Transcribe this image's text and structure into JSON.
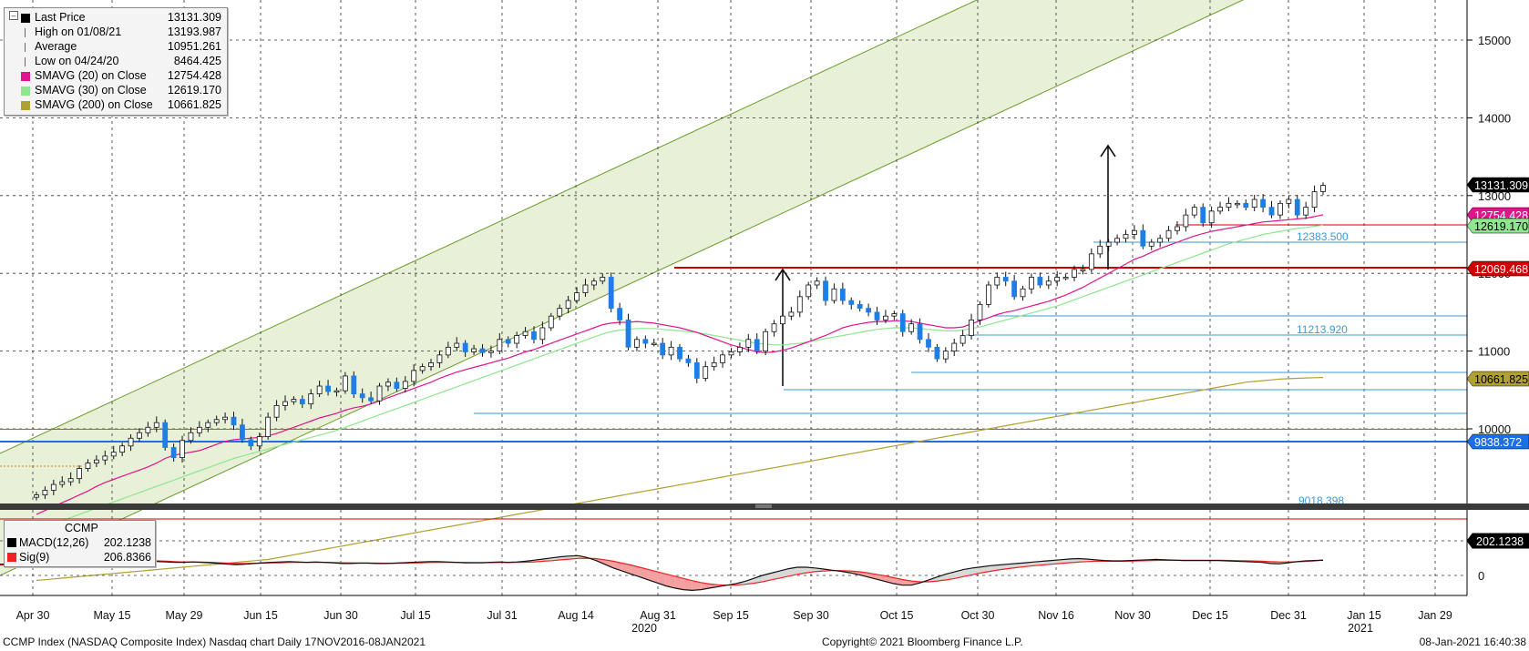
{
  "chart_data": {
    "type": "candlestick",
    "instrument": "CCMP Index (NASDAQ Composite Index) Nasdaq chart  Daily  17NOV2016-08JAN2021",
    "x_axis": {
      "ticks": [
        "Apr 30",
        "May 15",
        "May 29",
        "Jun 15",
        "Jun 30",
        "Jul 15",
        "Jul 31",
        "Aug 14",
        "Aug 31",
        "Sep 15",
        "Sep 30",
        "Oct 15",
        "Oct 30",
        "Nov 16",
        "Nov 30",
        "Dec 15",
        "Dec 31",
        "Jan 15",
        "Jan 29"
      ],
      "year_labels": [
        "2020",
        "2021"
      ]
    },
    "y_axis": {
      "ticks": [
        "15000",
        "14000",
        "13000",
        "12000",
        "11000",
        "10000"
      ],
      "ylim": [
        9000,
        15500
      ]
    },
    "legend": [
      {
        "name": "Last Price",
        "value": "13131.309",
        "color": "#000000"
      },
      {
        "name": "High on 01/08/21",
        "value": "13193.987",
        "color": "#666666"
      },
      {
        "name": "Average",
        "value": "10951.261",
        "color": "#666666"
      },
      {
        "name": "Low on 04/24/20",
        "value": "8464.425",
        "color": "#666666"
      },
      {
        "name": "SMAVG (20)  on Close",
        "value": "12754.428",
        "color": "#e0148c"
      },
      {
        "name": "SMAVG (30)  on Close",
        "value": "12619.170",
        "color": "#8ee68e"
      },
      {
        "name": "SMAVG (200)  on Close",
        "value": "10661.825",
        "color": "#b0a030"
      }
    ],
    "price_tags": [
      {
        "text": "13131.309",
        "value": 13131.309,
        "bg": "#000000",
        "fg": "#ffffff"
      },
      {
        "text": "12754.428",
        "value": 12754.428,
        "bg": "#e0148c",
        "fg": "#ffffff"
      },
      {
        "text": "12619.170",
        "value": 12619.17,
        "bg": "#8ee68e",
        "fg": "#000000"
      },
      {
        "text": "12069.468",
        "value": 12069.468,
        "bg": "#cc0000",
        "fg": "#ffffff"
      },
      {
        "text": "10661.825",
        "value": 10661.825,
        "bg": "#b0a030",
        "fg": "#000000"
      },
      {
        "text": "9838.372",
        "value": 9838.372,
        "bg": "#1e6ee6",
        "fg": "#ffffff"
      }
    ],
    "level_labels": [
      "12383.500",
      "11213.920",
      "9018.398"
    ],
    "series": {
      "close": [
        9150,
        9210,
        9285,
        9320,
        9360,
        9490,
        9560,
        9600,
        9650,
        9700,
        9780,
        9880,
        9950,
        10020,
        10080,
        9760,
        9630,
        9850,
        9950,
        10020,
        10080,
        10120,
        10150,
        10050,
        9860,
        9780,
        9900,
        10150,
        10300,
        10350,
        10380,
        10320,
        10450,
        10550,
        10480,
        10490,
        10680,
        10450,
        10400,
        10360,
        10550,
        10600,
        10520,
        10610,
        10750,
        10800,
        10850,
        10950,
        11050,
        11100,
        10990,
        11030,
        10980,
        11000,
        11150,
        11100,
        11200,
        11250,
        11150,
        11300,
        11450,
        11550,
        11650,
        11750,
        11850,
        11900,
        11950,
        11550,
        11400,
        11050,
        11150,
        11100,
        11100,
        10950,
        11050,
        10900,
        10850,
        10650,
        10800,
        10850,
        10950,
        10990,
        11050,
        11150,
        11000,
        11250,
        11350,
        11450,
        11500,
        11700,
        11850,
        11900,
        11650,
        11800,
        11650,
        11600,
        11550,
        11500,
        11400,
        11450,
        11480,
        11250,
        11350,
        11150,
        11050,
        10900,
        11000,
        11100,
        11200,
        11400,
        11600,
        11850,
        11950,
        11900,
        11700,
        11800,
        11950,
        11850,
        11900,
        11950,
        11950,
        12050,
        12050,
        12250,
        12350,
        12400,
        12450,
        12500,
        12550,
        12350,
        12400,
        12450,
        12550,
        12600,
        12750,
        12850,
        12650,
        12800,
        12850,
        12900,
        12900,
        12850,
        12950,
        12850,
        12750,
        12900,
        12950,
        12750,
        12850,
        13050,
        13131
      ],
      "sma20": [
        8900,
        8950,
        9000,
        9050,
        9100,
        9150,
        9200,
        9260,
        9310,
        9350,
        9390,
        9430,
        9470,
        9510,
        9560,
        9620,
        9660,
        9680,
        9700,
        9720,
        9760,
        9800,
        9840,
        9860,
        9870,
        9880,
        9890,
        9910,
        9940,
        9980,
        10020,
        10060,
        10100,
        10140,
        10170,
        10200,
        10240,
        10270,
        10290,
        10320,
        10360,
        10400,
        10440,
        10480,
        10520,
        10560,
        10600,
        10650,
        10690,
        10730,
        10760,
        10790,
        10820,
        10850,
        10880,
        10910,
        10950,
        10990,
        11020,
        11060,
        11100,
        11140,
        11180,
        11220,
        11260,
        11300,
        11340,
        11360,
        11370,
        11370,
        11380,
        11370,
        11360,
        11340,
        11320,
        11300,
        11270,
        11240,
        11200,
        11160,
        11120,
        11080,
        11050,
        11020,
        10990,
        10980,
        10990,
        11010,
        11040,
        11080,
        11120,
        11160,
        11200,
        11250,
        11300,
        11330,
        11350,
        11370,
        11380,
        11380,
        11390,
        11390,
        11380,
        11360,
        11340,
        11320,
        11300,
        11300,
        11310,
        11350,
        11390,
        11430,
        11470,
        11500,
        11520,
        11550,
        11580,
        11610,
        11640,
        11680,
        11720,
        11770,
        11820,
        11880,
        11940,
        12000,
        12060,
        12120,
        12180,
        12220,
        12270,
        12320,
        12360,
        12400,
        12440,
        12480,
        12510,
        12540,
        12560,
        12580,
        12600,
        12620,
        12640,
        12660,
        12670,
        12680,
        12690,
        12700,
        12710,
        12730,
        12754
      ],
      "sma30": [
        8700,
        8740,
        8780,
        8820,
        8860,
        8900,
        8940,
        8980,
        9020,
        9060,
        9100,
        9140,
        9180,
        9220,
        9260,
        9300,
        9340,
        9380,
        9420,
        9460,
        9500,
        9540,
        9580,
        9620,
        9650,
        9680,
        9710,
        9740,
        9770,
        9800,
        9830,
        9860,
        9890,
        9920,
        9950,
        9980,
        10020,
        10060,
        10100,
        10140,
        10180,
        10220,
        10260,
        10300,
        10340,
        10380,
        10420,
        10460,
        10500,
        10540,
        10580,
        10620,
        10660,
        10700,
        10740,
        10780,
        10820,
        10860,
        10900,
        10940,
        10980,
        11020,
        11060,
        11100,
        11140,
        11180,
        11220,
        11250,
        11270,
        11280,
        11290,
        11290,
        11290,
        11280,
        11270,
        11260,
        11250,
        11240,
        11220,
        11200,
        11180,
        11160,
        11140,
        11120,
        11100,
        11090,
        11080,
        11080,
        11090,
        11100,
        11120,
        11140,
        11160,
        11180,
        11200,
        11220,
        11240,
        11260,
        11280,
        11290,
        11300,
        11300,
        11300,
        11290,
        11280,
        11270,
        11260,
        11260,
        11270,
        11290,
        11310,
        11340,
        11370,
        11400,
        11430,
        11460,
        11490,
        11520,
        11550,
        11580,
        11620,
        11660,
        11700,
        11740,
        11780,
        11820,
        11860,
        11900,
        11940,
        11980,
        12020,
        12060,
        12100,
        12140,
        12180,
        12220,
        12260,
        12300,
        12340,
        12380,
        12410,
        12440,
        12470,
        12500,
        12520,
        12540,
        12560,
        12580,
        12590,
        12605,
        12619
      ],
      "sma200": [
        8050,
        8060,
        8070,
        8080,
        8090,
        8100,
        8110,
        8120,
        8130,
        8140,
        8150,
        8160,
        8170,
        8180,
        8190,
        8200,
        8210,
        8220,
        8230,
        8240,
        8250,
        8260,
        8270,
        8280,
        8290,
        8300,
        8310,
        8320,
        8340,
        8360,
        8380,
        8400,
        8420,
        8440,
        8460,
        8480,
        8500,
        8520,
        8540,
        8560,
        8580,
        8600,
        8620,
        8640,
        8660,
        8680,
        8700,
        8720,
        8740,
        8760,
        8780,
        8800,
        8820,
        8840,
        8860,
        8880,
        8900,
        8920,
        8940,
        8960,
        8980,
        9000,
        9020,
        9040,
        9060,
        9080,
        9100,
        9120,
        9140,
        9160,
        9180,
        9200,
        9220,
        9240,
        9260,
        9280,
        9300,
        9320,
        9340,
        9360,
        9380,
        9400,
        9420,
        9440,
        9460,
        9480,
        9500,
        9520,
        9540,
        9560,
        9580,
        9600,
        9620,
        9640,
        9660,
        9680,
        9700,
        9720,
        9740,
        9760,
        9780,
        9800,
        9820,
        9840,
        9860,
        9880,
        9900,
        9920,
        9940,
        9960,
        9980,
        10000,
        10020,
        10040,
        10060,
        10080,
        10100,
        10120,
        10140,
        10160,
        10180,
        10200,
        10220,
        10240,
        10260,
        10280,
        10300,
        10320,
        10340,
        10360,
        10380,
        10400,
        10420,
        10440,
        10460,
        10480,
        10500,
        10520,
        10540,
        10560,
        10580,
        10600,
        10610,
        10620,
        10630,
        10640,
        10645,
        10650,
        10655,
        10658,
        10661
      ]
    },
    "macd": {
      "ticks": [
        "0"
      ],
      "ylim": [
        -250,
        300
      ],
      "legend": [
        {
          "name": "MACD(12,26)",
          "value": "202.1238",
          "color": "#000000"
        },
        {
          "name": "Sig(9)",
          "value": "206.8366",
          "color": "#ee2222"
        }
      ],
      "title": "CCMP",
      "tag": {
        "text": "202.1238",
        "value": 202.1238
      },
      "macd": [
        150,
        155,
        160,
        165,
        170,
        175,
        180,
        185,
        190,
        195,
        200,
        210,
        220,
        230,
        240,
        220,
        200,
        190,
        185,
        180,
        175,
        175,
        180,
        175,
        170,
        160,
        150,
        145,
        150,
        160,
        170,
        175,
        180,
        185,
        180,
        175,
        180,
        175,
        170,
        160,
        160,
        165,
        165,
        160,
        160,
        165,
        170,
        175,
        180,
        185,
        185,
        180,
        175,
        170,
        170,
        170,
        175,
        180,
        175,
        180,
        190,
        205,
        220,
        235,
        250,
        260,
        265,
        240,
        200,
        150,
        100,
        60,
        20,
        -20,
        -60,
        -100,
        -140,
        -170,
        -190,
        -200,
        -190,
        -170,
        -150,
        -130,
        -110,
        -80,
        -40,
        0,
        30,
        60,
        90,
        110,
        110,
        100,
        85,
        70,
        55,
        35,
        10,
        -20,
        -50,
        -80,
        -110,
        -130,
        -130,
        -100,
        -60,
        -20,
        20,
        50,
        80,
        100,
        115,
        130,
        140,
        150,
        160,
        170,
        180,
        190,
        200,
        210,
        220,
        225,
        220,
        210,
        200,
        195,
        195,
        200,
        205,
        210,
        215,
        210,
        205,
        200,
        200,
        200,
        200,
        200,
        195,
        190,
        185,
        180,
        175,
        160,
        155,
        170,
        185,
        195,
        200,
        202
      ],
      "signal": [
        140,
        145,
        150,
        155,
        160,
        165,
        170,
        175,
        180,
        185,
        190,
        195,
        200,
        205,
        210,
        210,
        205,
        200,
        195,
        190,
        185,
        180,
        180,
        178,
        175,
        170,
        165,
        160,
        160,
        162,
        165,
        168,
        170,
        175,
        176,
        175,
        176,
        175,
        173,
        170,
        168,
        167,
        166,
        165,
        164,
        164,
        165,
        167,
        170,
        173,
        175,
        176,
        175,
        174,
        173,
        172,
        172,
        173,
        173,
        174,
        177,
        182,
        190,
        198,
        208,
        218,
        228,
        230,
        225,
        210,
        190,
        165,
        140,
        110,
        80,
        50,
        20,
        -10,
        -40,
        -70,
        -95,
        -115,
        -125,
        -130,
        -130,
        -120,
        -105,
        -85,
        -60,
        -35,
        -10,
        15,
        35,
        50,
        60,
        65,
        65,
        60,
        50,
        35,
        15,
        -5,
        -30,
        -55,
        -75,
        -85,
        -85,
        -75,
        -60,
        -40,
        -15,
        10,
        35,
        55,
        75,
        90,
        105,
        118,
        130,
        140,
        150,
        160,
        170,
        178,
        185,
        190,
        190,
        190,
        190,
        192,
        195,
        198,
        201,
        202,
        202,
        202,
        202,
        202,
        202,
        202,
        201,
        199,
        197,
        194,
        190,
        185,
        180,
        180,
        183,
        187,
        195,
        206.8
      ]
    }
  },
  "footer": {
    "left": "CCMP Index (NASDAQ Composite Index) Nasdaq chart  Daily  17NOV2016-08JAN2021",
    "center": "Copyright© 2021 Bloomberg Finance L.P.",
    "right": "08-Jan-2021 16:40:38"
  }
}
